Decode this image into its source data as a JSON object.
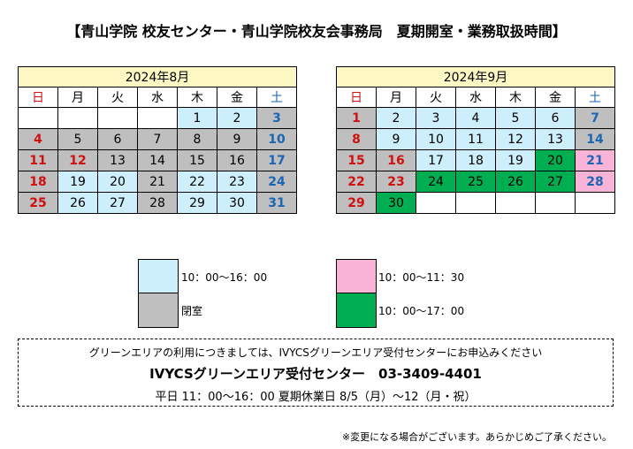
{
  "title": "【青山学院 校友センター・青山学院校友会事務局　夏期開室・業務取扱時間】",
  "weekdays": [
    "日",
    "月",
    "火",
    "水",
    "木",
    "金",
    "土"
  ],
  "colors": {
    "blue": "#cdeefb",
    "gray": "#bfbfbf",
    "pink": "#f9b3d6",
    "green": "#00ad50",
    "header": "#fdf7c3",
    "sunday_text": "#d01010",
    "saturday_text": "#1a66b5"
  },
  "august": {
    "label": "2024年8月",
    "weeks": [
      [
        [
          "",
          ""
        ],
        [
          "",
          ""
        ],
        [
          "",
          ""
        ],
        [
          "",
          ""
        ],
        [
          "1",
          "blue"
        ],
        [
          "2",
          "blue"
        ],
        [
          "3",
          "gray"
        ]
      ],
      [
        [
          "4",
          "gray"
        ],
        [
          "5",
          "gray"
        ],
        [
          "6",
          "gray"
        ],
        [
          "7",
          "gray"
        ],
        [
          "8",
          "gray"
        ],
        [
          "9",
          "gray"
        ],
        [
          "10",
          "gray"
        ]
      ],
      [
        [
          "11",
          "gray"
        ],
        [
          "12",
          "gray"
        ],
        [
          "13",
          "gray"
        ],
        [
          "14",
          "gray"
        ],
        [
          "15",
          "gray"
        ],
        [
          "16",
          "gray"
        ],
        [
          "17",
          "gray"
        ]
      ],
      [
        [
          "18",
          "gray"
        ],
        [
          "19",
          "blue"
        ],
        [
          "20",
          "blue"
        ],
        [
          "21",
          "gray"
        ],
        [
          "22",
          "blue"
        ],
        [
          "23",
          "blue"
        ],
        [
          "24",
          "gray"
        ]
      ],
      [
        [
          "25",
          "gray"
        ],
        [
          "26",
          "blue"
        ],
        [
          "27",
          "blue"
        ],
        [
          "28",
          "gray"
        ],
        [
          "29",
          "blue"
        ],
        [
          "30",
          "blue"
        ],
        [
          "31",
          "gray"
        ]
      ]
    ],
    "red_days": [
      "11",
      "12"
    ]
  },
  "september": {
    "label": "2024年9月",
    "weeks": [
      [
        [
          "1",
          "gray"
        ],
        [
          "2",
          "blue"
        ],
        [
          "3",
          "blue"
        ],
        [
          "4",
          "blue"
        ],
        [
          "5",
          "blue"
        ],
        [
          "6",
          "blue"
        ],
        [
          "7",
          "gray"
        ]
      ],
      [
        [
          "8",
          "gray"
        ],
        [
          "9",
          "blue"
        ],
        [
          "10",
          "blue"
        ],
        [
          "11",
          "blue"
        ],
        [
          "12",
          "blue"
        ],
        [
          "13",
          "blue"
        ],
        [
          "14",
          "gray"
        ]
      ],
      [
        [
          "15",
          "gray"
        ],
        [
          "16",
          "gray"
        ],
        [
          "17",
          "blue"
        ],
        [
          "18",
          "blue"
        ],
        [
          "19",
          "blue"
        ],
        [
          "20",
          "green"
        ],
        [
          "21",
          "pink"
        ]
      ],
      [
        [
          "22",
          "gray"
        ],
        [
          "23",
          "gray"
        ],
        [
          "24",
          "green"
        ],
        [
          "25",
          "green"
        ],
        [
          "26",
          "green"
        ],
        [
          "27",
          "green"
        ],
        [
          "28",
          "pink"
        ]
      ],
      [
        [
          "29",
          "gray"
        ],
        [
          "30",
          "green"
        ],
        [
          "",
          ""
        ],
        [
          "",
          ""
        ],
        [
          "",
          ""
        ],
        [
          "",
          ""
        ],
        [
          "",
          ""
        ]
      ]
    ],
    "red_days": [
      "16",
      "23"
    ]
  },
  "legend": {
    "blue_label": "10：00～16：00",
    "gray_label": "閉室",
    "pink_label": "10：00～11：30",
    "green_label": "10：00～17：00"
  },
  "info": {
    "line1": "グリーンエリアの利用につきましては、IVYCSグリーンエリア受付センターにお申込みください",
    "line2": "IVYCSグリーンエリア受付センター　03-3409-4401",
    "line3": "平日 11：00～16：00  夏期休業日 8/5（月）～12（月・祝）"
  },
  "note": "※変更になる場合がございます。あらかじめご了承ください。"
}
